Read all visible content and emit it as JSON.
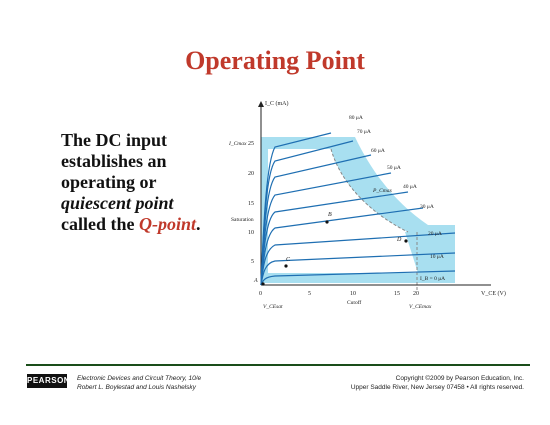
{
  "slide": {
    "title": "Operating Point",
    "text_line1": "The DC input",
    "text_line2": "establishes an",
    "text_line3": "operating or",
    "text_line4": "quiescent point",
    "text_line5_pre": "called the ",
    "text_line5_q": "Q-point",
    "text_line5_post": "."
  },
  "figure": {
    "y_axis_label": "I_C (mA)",
    "x_axis_label": "V_CE (V)",
    "ic_max_label": "I_Cmax",
    "pc_max_label": "P_Cmax",
    "vce_max_label": "V_CEmax",
    "vce_sat_label": "V_CEsat",
    "saturation_label": "Saturation",
    "cutoff_label": "Cutoff",
    "y_ticks": [
      "5",
      "10",
      "15",
      "20",
      "25"
    ],
    "x_ticks": [
      "0",
      "5",
      "10",
      "15",
      "20"
    ],
    "curve_labels": [
      "80 μA",
      "70 μA",
      "60 μA",
      "50 μA",
      "40 μA",
      "30 μA",
      "20 μA",
      "10 μA",
      "I_B = 0 μA"
    ],
    "points": [
      {
        "label": "A",
        "vce": 0,
        "ic": 0
      },
      {
        "label": "B",
        "vce": 7.5,
        "ic": 10.5
      },
      {
        "label": "C",
        "vce": 2.5,
        "ic": 3.3
      },
      {
        "label": "D",
        "vce": 17.5,
        "ic": 7.5
      }
    ],
    "colors": {
      "curves": "#1f6fb2",
      "safe_region": "#a8dff0",
      "region_border": "#888888"
    }
  },
  "footer": {
    "publisher": "PEARSON",
    "book_line1": "Electronic Devices and Circuit Theory, 10/e",
    "book_line2": "Robert L. Boylestad and Louis Nashelsky",
    "copyright_line1": "Copyright ©2009 by Pearson Education, Inc.",
    "copyright_line2": "Upper Saddle River, New Jersey 07458 • All rights reserved."
  }
}
